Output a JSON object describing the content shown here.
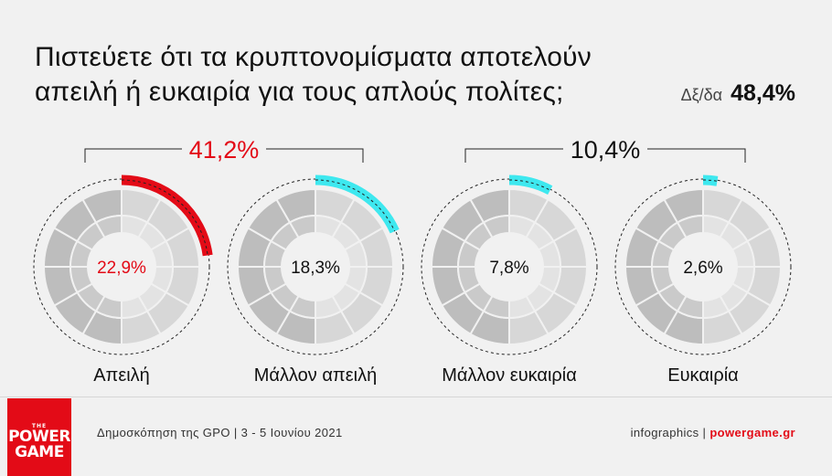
{
  "title": {
    "line1": "Πιστεύετε ότι τα κρυπτονομίσματα αποτελούν",
    "line2": "απειλή ή ευκαιρία για τους απλούς πολίτες;"
  },
  "dk_label": "Δξ/δα",
  "dk_value": "48,4%",
  "groups": [
    {
      "label": "41,2%",
      "color": "#e30b17"
    },
    {
      "label": "10,4%",
      "color": "#111111"
    }
  ],
  "chart_data": {
    "type": "pie",
    "title": "Πιστεύετε ότι τα κρυπτονομίσματα αποτελούν απειλή ή ευκαιρία για τους απλούς πολίτες;",
    "categories": [
      "Απειλή",
      "Μάλλον απειλή",
      "Μάλλον ευκαιρία",
      "Ευκαιρία"
    ],
    "values": [
      22.9,
      18.3,
      7.8,
      2.6
    ],
    "value_labels": [
      "22,9%",
      "18,3%",
      "7,8%",
      "2,6%"
    ],
    "colors": [
      "#e30b17",
      "#3ee8ef",
      "#3ee8ef",
      "#3ee8ef"
    ],
    "value_label_colors": [
      "#e30b17",
      "#111111",
      "#111111",
      "#111111"
    ],
    "group_totals": [
      {
        "label": "41,2%",
        "members": [
          "Απειλή",
          "Μάλλον απειλή"
        ]
      },
      {
        "label": "10,4%",
        "members": [
          "Μάλλον ευκαιρία",
          "Ευκαιρία"
        ]
      }
    ]
  },
  "footer": {
    "source": "Δημοσκόπηση της GPO | 3 - 5 Ιουνίου 2021",
    "credit_prefix": "infographics | ",
    "credit_site": "powergame.gr"
  },
  "logo": {
    "the": "THE",
    "power": "POWER",
    "game": "GAME"
  }
}
